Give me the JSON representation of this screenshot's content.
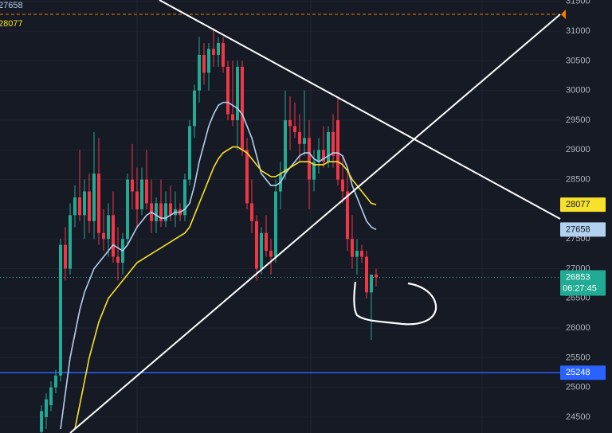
{
  "chart_data": {
    "type": "candlestick",
    "ylim": [
      24232,
      31524
    ],
    "yticks": [
      24500,
      25000,
      25500,
      26000,
      26500,
      27000,
      27500,
      28000,
      28500,
      29000,
      29500,
      30000,
      30500,
      31000,
      31500
    ],
    "grid": true,
    "up_color": "#22ab94",
    "down_color": "#f23645",
    "ohlc": [
      [
        24250,
        24700,
        24232,
        24600
      ],
      [
        24500,
        24900,
        24300,
        24800
      ],
      [
        24700,
        25100,
        24600,
        25000
      ],
      [
        25000,
        25300,
        24900,
        25200
      ],
      [
        25200,
        27500,
        25100,
        27400
      ],
      [
        27400,
        27700,
        26800,
        27000
      ],
      [
        27000,
        28100,
        26900,
        27900
      ],
      [
        27900,
        28400,
        27700,
        28200
      ],
      [
        28200,
        29000,
        27800,
        27900
      ],
      [
        27900,
        28500,
        27500,
        28300
      ],
      [
        28300,
        28600,
        27600,
        27800
      ],
      [
        27800,
        29300,
        27500,
        28600
      ],
      [
        28600,
        29200,
        27400,
        27600
      ],
      [
        27600,
        28000,
        27300,
        27500
      ],
      [
        27500,
        28100,
        27200,
        27900
      ],
      [
        27900,
        28300,
        27100,
        27200
      ],
      [
        27200,
        27700,
        26800,
        27100
      ],
      [
        27100,
        27600,
        26900,
        27500
      ],
      [
        27500,
        28600,
        27400,
        28500
      ],
      [
        28500,
        29100,
        28000,
        28300
      ],
      [
        28300,
        28700,
        27700,
        28000
      ],
      [
        28000,
        28700,
        27900,
        28500
      ],
      [
        28500,
        29000,
        28000,
        28100
      ],
      [
        28100,
        28500,
        27600,
        27800
      ],
      [
        27800,
        28200,
        27600,
        28100
      ],
      [
        28100,
        28500,
        27700,
        27800
      ],
      [
        27800,
        28300,
        27700,
        28100
      ],
      [
        28100,
        28400,
        27800,
        27900
      ],
      [
        27900,
        28300,
        27700,
        28000
      ],
      [
        28000,
        28100,
        27800,
        27900
      ],
      [
        27900,
        28600,
        27800,
        28500
      ],
      [
        28500,
        29500,
        28400,
        29400
      ],
      [
        29400,
        30100,
        29200,
        30000
      ],
      [
        30000,
        30900,
        29800,
        30600
      ],
      [
        30600,
        30800,
        30100,
        30300
      ],
      [
        30300,
        30800,
        30000,
        30700
      ],
      [
        30700,
        31050,
        30400,
        30600
      ],
      [
        30600,
        30900,
        30400,
        30800
      ],
      [
        30800,
        30900,
        30300,
        30400
      ],
      [
        30400,
        30500,
        29500,
        29600
      ],
      [
        29600,
        30500,
        29400,
        29500
      ],
      [
        29500,
        30500,
        29000,
        30400
      ],
      [
        30400,
        30500,
        28900,
        29000
      ],
      [
        29000,
        29200,
        28000,
        28100
      ],
      [
        28100,
        28500,
        27600,
        27800
      ],
      [
        27800,
        27900,
        26800,
        27000
      ],
      [
        27000,
        27700,
        26900,
        27600
      ],
      [
        27600,
        27900,
        27200,
        27300
      ],
      [
        27300,
        27500,
        26900,
        27200
      ],
      [
        27200,
        28500,
        27100,
        28300
      ],
      [
        28300,
        28800,
        28000,
        28600
      ],
      [
        28600,
        30000,
        28500,
        29500
      ],
      [
        29500,
        29900,
        29000,
        29400
      ],
      [
        29400,
        29800,
        29200,
        29300
      ],
      [
        29300,
        29600,
        28800,
        29100
      ],
      [
        29100,
        30000,
        28900,
        29200
      ],
      [
        29200,
        29500,
        28000,
        28500
      ],
      [
        28500,
        29000,
        28300,
        28800
      ],
      [
        28800,
        29200,
        28600,
        29000
      ],
      [
        29000,
        29400,
        28700,
        28800
      ],
      [
        28800,
        29400,
        28700,
        29300
      ],
      [
        29300,
        29600,
        28700,
        28900
      ],
      [
        29500,
        29900,
        28400,
        28500
      ],
      [
        28500,
        28900,
        28100,
        28300
      ],
      [
        28300,
        28700,
        27300,
        27500
      ],
      [
        27500,
        27900,
        27000,
        27200
      ],
      [
        27200,
        27500,
        26900,
        27300
      ],
      [
        27300,
        27400,
        27100,
        27200
      ],
      [
        27200,
        27300,
        26500,
        26600
      ],
      [
        26600,
        26900,
        25800,
        26900
      ],
      [
        26900,
        27000,
        26700,
        26853
      ]
    ],
    "series": [
      {
        "color": "#b2d1f0",
        "values": [
          null,
          null,
          null,
          null,
          24300,
          24900,
          25500,
          25900,
          26300,
          26600,
          26800,
          27000,
          27100,
          27200,
          27300,
          27400,
          27350,
          27300,
          27400,
          27550,
          27700,
          27800,
          27900,
          27950,
          27900,
          27850,
          27850,
          27900,
          27950,
          27950,
          28000,
          28100,
          28400,
          28800,
          29100,
          29400,
          29600,
          29750,
          29800,
          29800,
          29750,
          29700,
          29600,
          29400,
          29200,
          28900,
          28600,
          28500,
          28400,
          28400,
          28450,
          28600,
          28700,
          28800,
          28900,
          28950,
          28950,
          28850,
          28800,
          28850,
          28900,
          28950,
          28950,
          28900,
          28700,
          28400,
          28200,
          28000,
          27800,
          27700,
          27658
        ]
      },
      {
        "color": "#f7e12a",
        "values": [
          null,
          null,
          null,
          null,
          null,
          null,
          null,
          24300,
          24700,
          25100,
          25500,
          25800,
          26100,
          26300,
          26500,
          26600,
          26700,
          26800,
          26900,
          27000,
          27100,
          27150,
          27200,
          27250,
          27300,
          27350,
          27400,
          27450,
          27500,
          27550,
          27600,
          27700,
          27900,
          28100,
          28300,
          28500,
          28700,
          28850,
          28950,
          29000,
          29050,
          29050,
          29000,
          28950,
          28850,
          28750,
          28650,
          28600,
          28550,
          28550,
          28600,
          28650,
          28700,
          28750,
          28800,
          28800,
          28800,
          28750,
          28750,
          28750,
          28800,
          28800,
          28800,
          28750,
          28650,
          28500,
          28400,
          28300,
          28200,
          28100,
          28077
        ]
      }
    ],
    "price_lines": [
      {
        "value": 25248,
        "color": "#2962ff"
      }
    ],
    "countdown": "06:27:45"
  }
}
